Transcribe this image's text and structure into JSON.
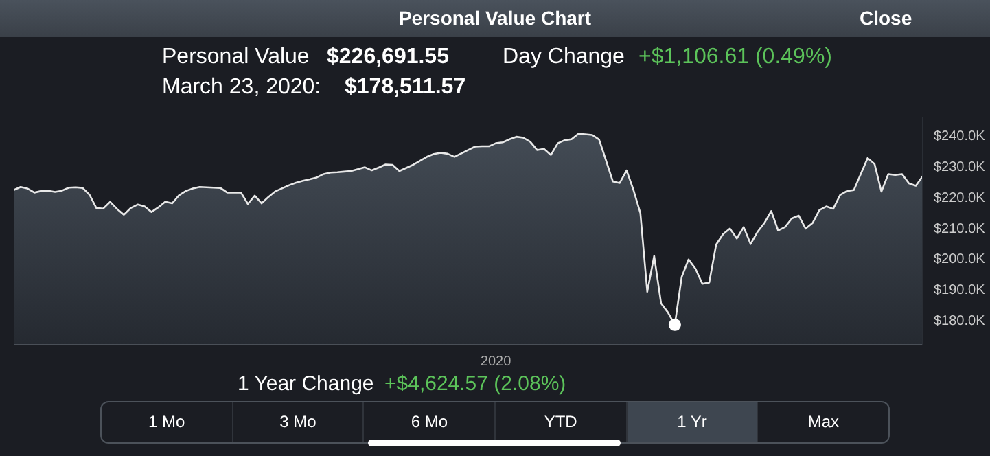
{
  "chart_data": {
    "type": "area",
    "title": "Personal Value Chart",
    "categories": [
      null,
      null,
      null,
      null,
      null,
      null,
      null,
      null,
      null,
      null,
      null,
      null,
      null,
      null,
      null,
      null,
      null,
      null,
      null,
      null,
      null,
      null,
      null,
      null,
      null,
      null,
      null,
      null,
      null,
      null,
      null,
      null,
      null,
      null,
      null,
      null,
      null,
      null,
      null,
      null,
      null,
      null,
      null,
      null,
      null,
      null,
      null,
      null,
      null,
      null,
      null,
      null,
      null,
      null,
      null,
      null,
      null,
      null,
      null,
      null,
      null,
      null,
      null,
      null,
      null,
      null,
      null,
      null,
      null,
      null,
      "2020",
      null,
      null,
      null,
      null,
      null,
      null,
      null,
      null,
      null,
      null,
      null,
      null,
      null,
      null,
      null,
      null,
      null,
      null,
      null,
      null,
      null,
      null,
      null,
      null,
      null,
      null,
      null,
      null,
      null,
      null,
      null,
      null,
      null,
      null,
      null,
      null,
      null,
      null,
      null,
      null,
      null,
      null,
      null,
      null,
      null,
      null,
      null,
      null,
      null,
      null,
      null,
      null,
      null,
      null,
      null,
      null,
      null,
      null,
      null,
      null,
      null,
      null
    ],
    "series": [
      {
        "color": "#e8e8e8",
        "values": [
          222200,
          223200,
          222700,
          221400,
          221900,
          222000,
          221600,
          222000,
          223000,
          223100,
          222900,
          220700,
          216400,
          216200,
          218400,
          216100,
          214200,
          216400,
          217500,
          216900,
          215100,
          216600,
          218400,
          217900,
          220500,
          221900,
          222700,
          223200,
          223100,
          223000,
          222900,
          221400,
          221400,
          221400,
          217700,
          220400,
          217900,
          220000,
          221800,
          222800,
          223800,
          224600,
          225200,
          225700,
          226300,
          227400,
          227900,
          228000,
          228200,
          228400,
          229000,
          229600,
          228600,
          229500,
          230500,
          230400,
          228400,
          229400,
          230400,
          231700,
          233000,
          233900,
          234300,
          234000,
          233000,
          234100,
          235200,
          236300,
          236400,
          236400,
          237400,
          237700,
          238700,
          239500,
          239200,
          237900,
          235200,
          235600,
          233600,
          237400,
          238400,
          238700,
          240500,
          240300,
          240100,
          238600,
          231900,
          225000,
          224500,
          228600,
          222200,
          214700,
          189200,
          200800,
          185500,
          182500,
          178500,
          194000,
          199700,
          196700,
          191800,
          192200,
          204500,
          207900,
          209700,
          206500,
          210200,
          204700,
          208600,
          211500,
          215400,
          209100,
          210200,
          213000,
          213900,
          209700,
          211500,
          215700,
          216900,
          216100,
          220600,
          221900,
          222200,
          227400,
          232600,
          230700,
          221700,
          227400,
          227100,
          227400,
          224400,
          223600,
          226700
        ]
      },
      {
        "type": "scatter",
        "color": "#ffffff",
        "marker": "circle",
        "values": [
          null,
          null,
          null,
          null,
          null,
          null,
          null,
          null,
          null,
          null,
          null,
          null,
          null,
          null,
          null,
          null,
          null,
          null,
          null,
          null,
          null,
          null,
          null,
          null,
          null,
          null,
          null,
          null,
          null,
          null,
          null,
          null,
          null,
          null,
          null,
          null,
          null,
          null,
          null,
          null,
          null,
          null,
          null,
          null,
          null,
          null,
          null,
          null,
          null,
          null,
          null,
          null,
          null,
          null,
          null,
          null,
          null,
          null,
          null,
          null,
          null,
          null,
          null,
          null,
          null,
          null,
          null,
          null,
          null,
          null,
          null,
          null,
          null,
          null,
          null,
          null,
          null,
          null,
          null,
          null,
          null,
          null,
          null,
          null,
          null,
          null,
          null,
          null,
          null,
          null,
          null,
          null,
          null,
          null,
          null,
          null,
          178500,
          null,
          null,
          null,
          null,
          null,
          null,
          null,
          null,
          null,
          null,
          null,
          null,
          null,
          null,
          null,
          null,
          null,
          null,
          null,
          null,
          null,
          null,
          null,
          null,
          null,
          null,
          null,
          null,
          null,
          null,
          null,
          null,
          null,
          null,
          null,
          null
        ]
      }
    ],
    "ylim": [
      172000,
      246000
    ],
    "yticks": [
      {
        "value": 180000,
        "label": "$180.0K"
      },
      {
        "value": 190000,
        "label": "$190.0K"
      },
      {
        "value": 200000,
        "label": "$200.0K"
      },
      {
        "value": 210000,
        "label": "$210.0K"
      },
      {
        "value": 220000,
        "label": "$220.0K"
      },
      {
        "value": 230000,
        "label": "$230.0K"
      },
      {
        "value": 240000,
        "label": "$240.0K"
      }
    ],
    "annotations": [
      "Close",
      "Personal Value",
      "$226,691.55",
      "Day Change",
      "+$1,106.61 (0.49%)",
      "March 23, 2020:",
      "$178,511.57",
      "1 Year Change",
      "+$4,624.57 (2.08%)",
      "1 Mo",
      "3 Mo",
      "6 Mo",
      "YTD",
      "1 Yr",
      "Max"
    ],
    "grid": false,
    "legend": false,
    "marker": "none",
    "line_style": "solid"
  }
}
